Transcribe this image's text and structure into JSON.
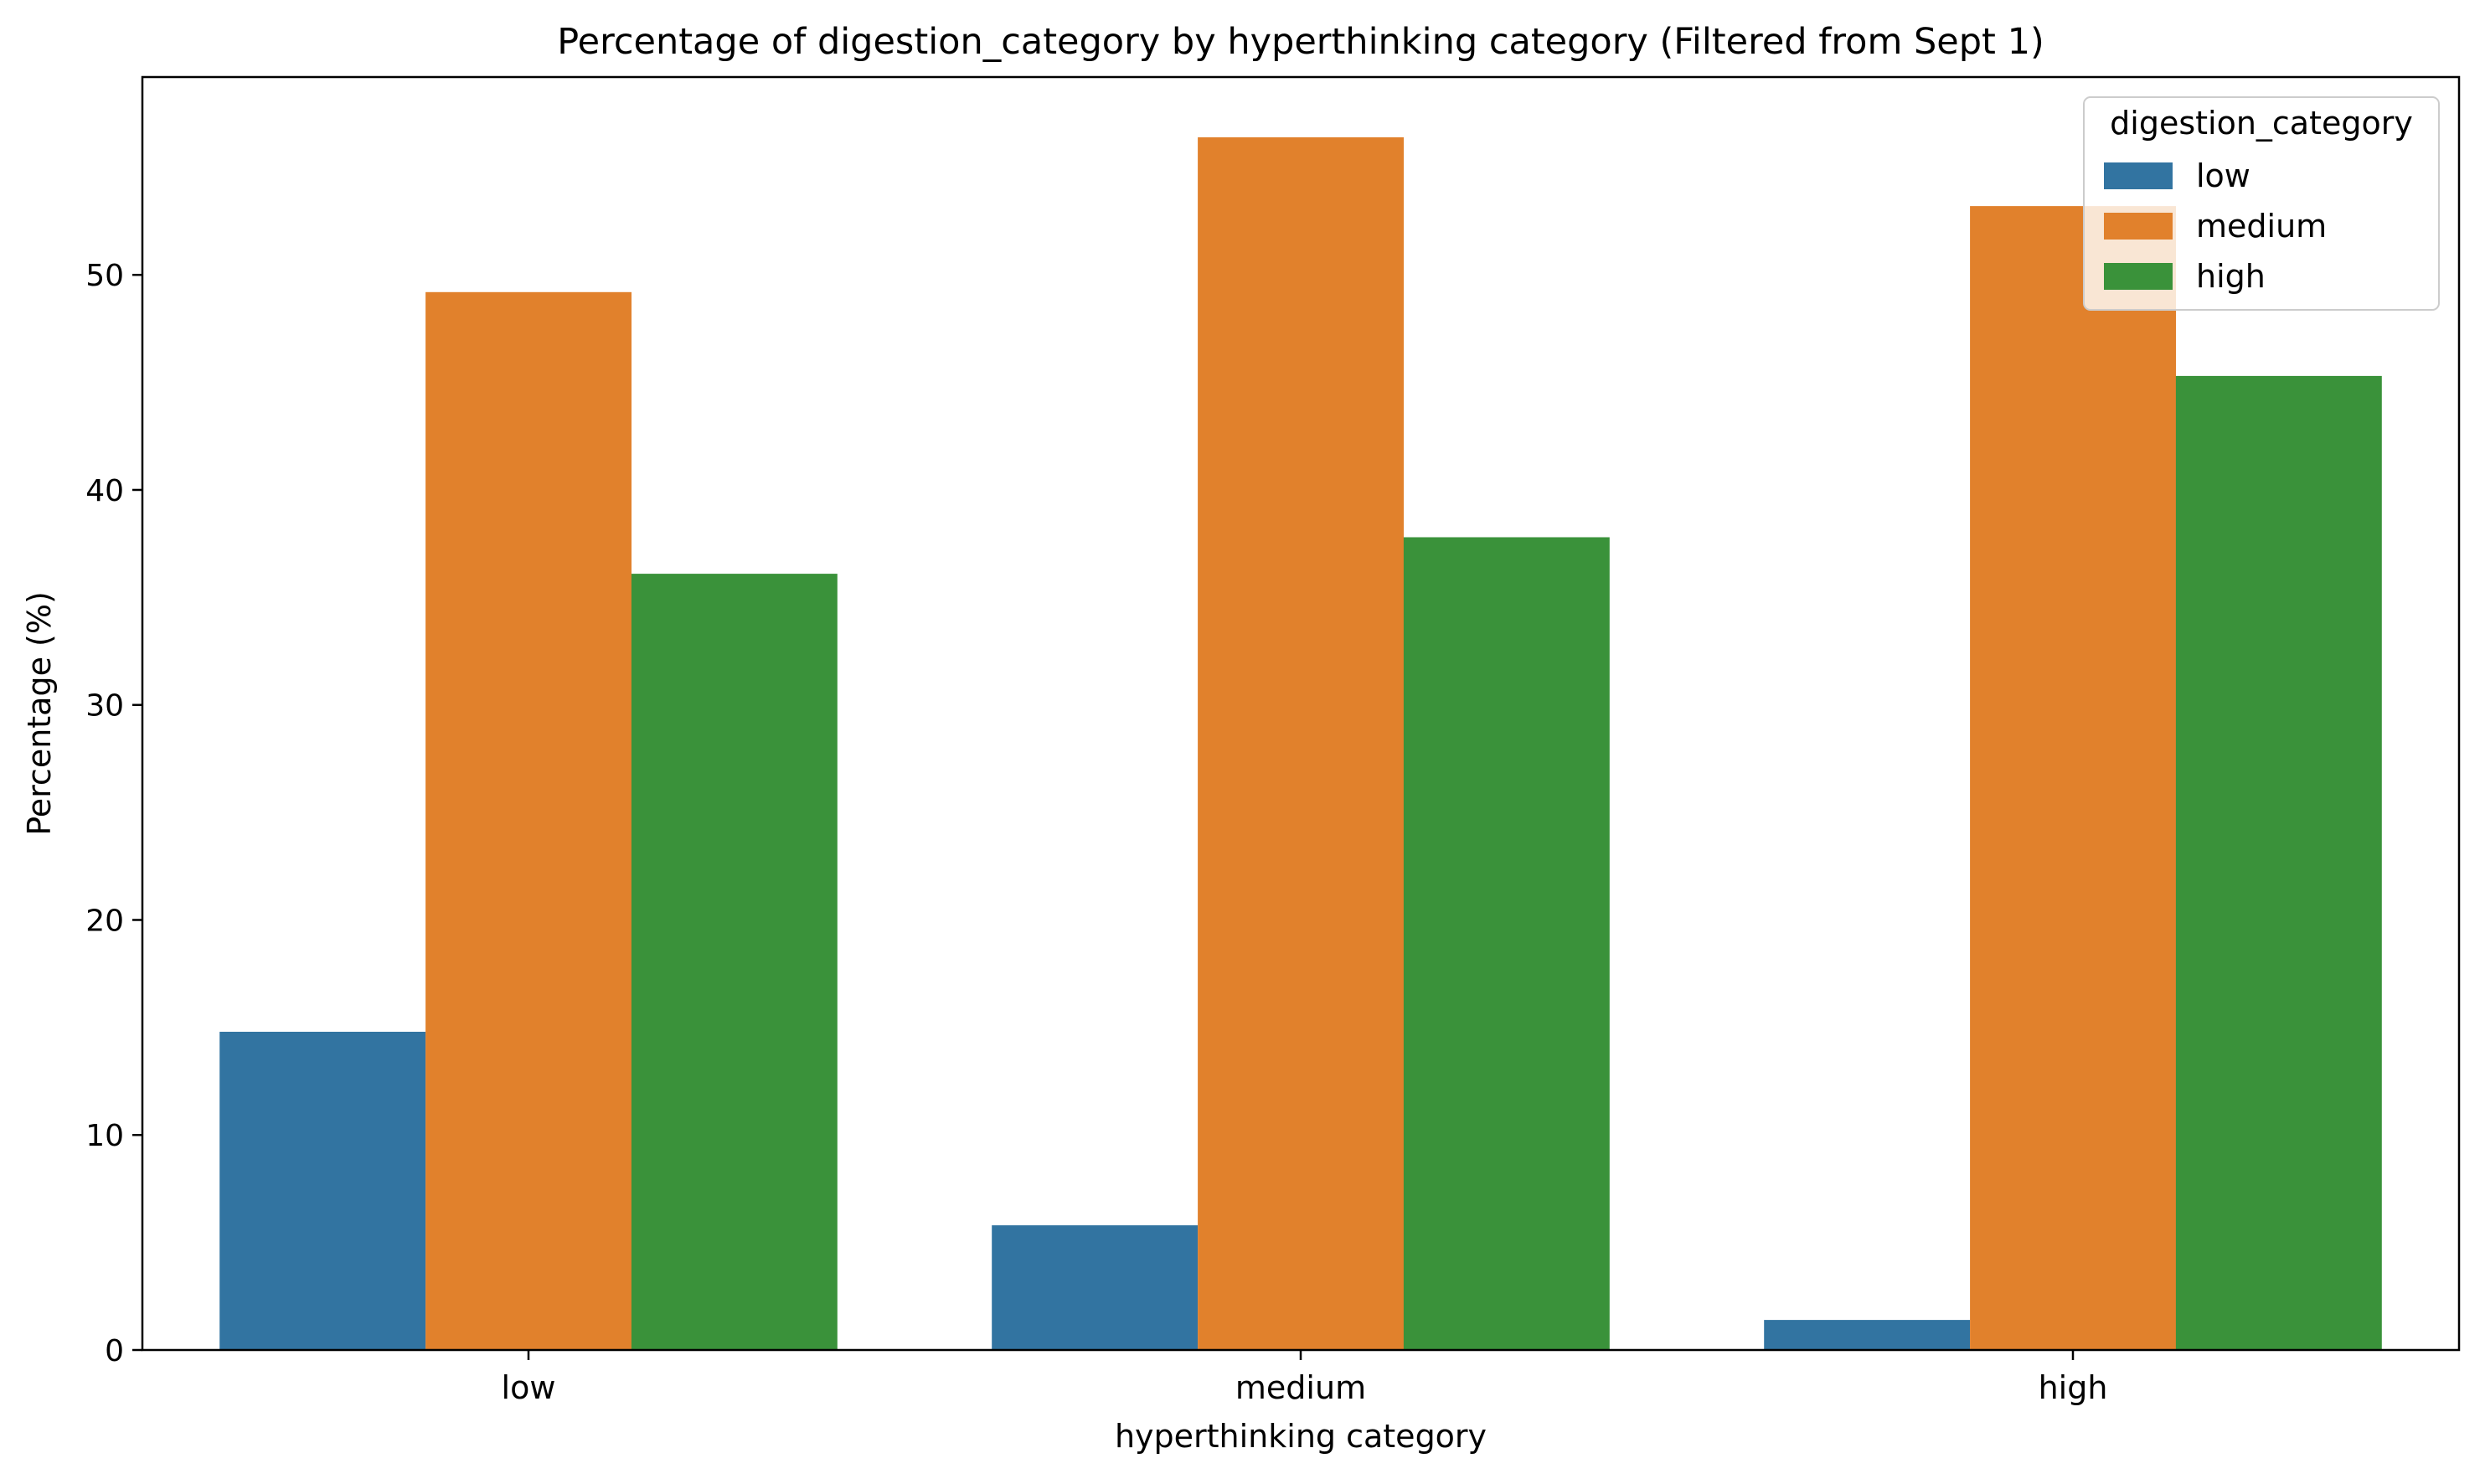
{
  "chart_data": {
    "type": "bar",
    "title": "Percentage of digestion_category by hyperthinking category (Filtered from Sept 1)",
    "xlabel": "hyperthinking category",
    "ylabel": "Percentage (%)",
    "categories": [
      "low",
      "medium",
      "high"
    ],
    "yticks": [
      0,
      10,
      20,
      30,
      40,
      50
    ],
    "ylim": [
      0,
      59.2
    ],
    "grid": false,
    "legend": {
      "title": "digestion_category",
      "placement": "top-right"
    },
    "series": [
      {
        "name": "low",
        "color": "#3274a1",
        "values": [
          14.8,
          5.8,
          1.4
        ]
      },
      {
        "name": "medium",
        "color": "#e1812c",
        "values": [
          49.2,
          56.4,
          53.2
        ]
      },
      {
        "name": "high",
        "color": "#3a923a",
        "values": [
          36.1,
          37.8,
          45.3
        ]
      }
    ]
  }
}
